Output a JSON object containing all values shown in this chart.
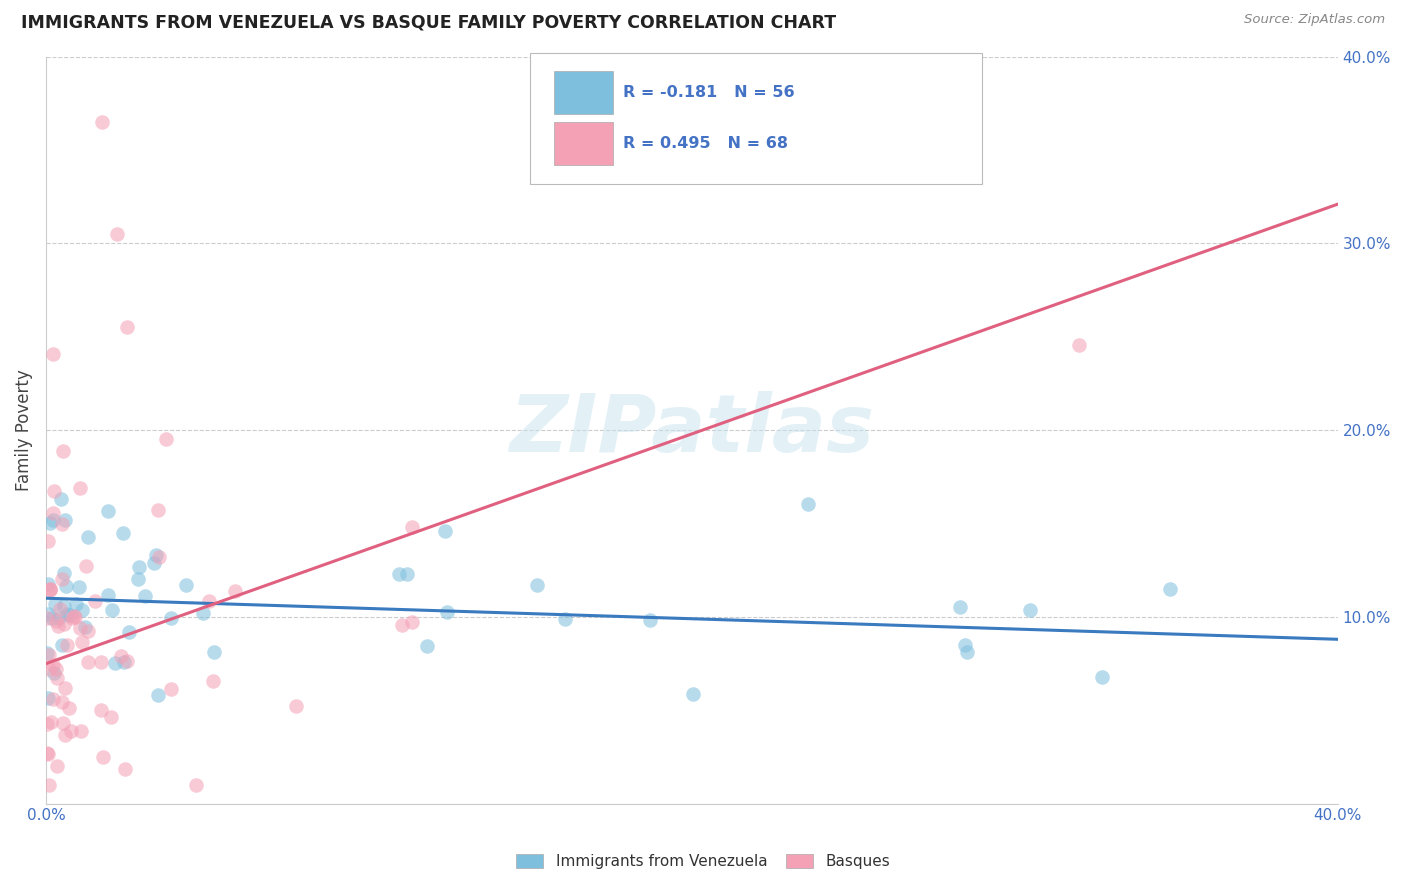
{
  "title": "IMMIGRANTS FROM VENEZUELA VS BASQUE FAMILY POVERTY CORRELATION CHART",
  "source_text": "Source: ZipAtlas.com",
  "ylabel": "Family Poverty",
  "xlim": [
    0,
    0.4
  ],
  "ylim": [
    0,
    0.4
  ],
  "xtick_vals": [
    0.0,
    0.1,
    0.2,
    0.3,
    0.4
  ],
  "ytick_vals": [
    0.0,
    0.1,
    0.2,
    0.3,
    0.4
  ],
  "xticklabels": [
    "0.0%",
    "",
    "",
    "",
    "40.0%"
  ],
  "yticklabels_right": [
    "",
    "10.0%",
    "20.0%",
    "30.0%",
    "40.0%"
  ],
  "blue_color": "#7fbfde",
  "pink_color": "#f4a0b5",
  "blue_line_color": "#3a7abf",
  "pink_line_color": "#e06080",
  "watermark": "ZIPatlas",
  "blue_R": -0.181,
  "blue_N": 56,
  "pink_R": 0.495,
  "pink_N": 68,
  "blue_intercept": 0.11,
  "blue_slope": -0.055,
  "pink_intercept": 0.075,
  "pink_slope": 0.615,
  "tick_color": "#4472c4",
  "legend_text_color": "#4472c4",
  "grid_color": "#cccccc"
}
